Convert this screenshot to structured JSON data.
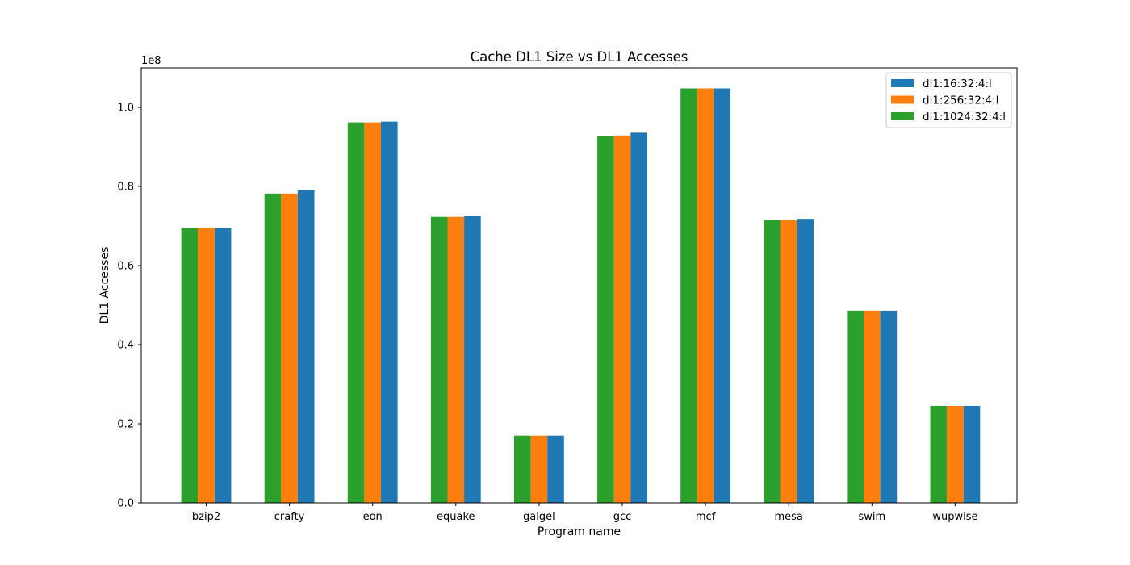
{
  "chart_data": {
    "type": "bar",
    "title": "Cache DL1 Size vs DL1 Accesses",
    "xlabel": "Program name",
    "ylabel": "DL1 Accesses",
    "y_scale_label": "1e8",
    "ylim": [
      0,
      1.1
    ],
    "yticks": [
      "0.0",
      "0.2",
      "0.4",
      "0.6",
      "0.8",
      "1.0"
    ],
    "grid": false,
    "legend_position": "top-right",
    "categories": [
      "bzip2",
      "crafty",
      "eon",
      "equake",
      "galgel",
      "gcc",
      "mcf",
      "mesa",
      "swim",
      "wupwise"
    ],
    "series": [
      {
        "name": "dl1:16:32:4:l",
        "color": "#1f77b4",
        "values": [
          0.694,
          0.79,
          0.964,
          0.725,
          0.17,
          0.936,
          1.048,
          0.718,
          0.486,
          0.245
        ]
      },
      {
        "name": "dl1:256:32:4:l",
        "color": "#ff7f0e",
        "values": [
          0.694,
          0.782,
          0.962,
          0.723,
          0.17,
          0.929,
          1.048,
          0.716,
          0.486,
          0.245
        ]
      },
      {
        "name": "dl1:1024:32:4:l",
        "color": "#2ca02c",
        "values": [
          0.694,
          0.782,
          0.962,
          0.723,
          0.17,
          0.927,
          1.048,
          0.716,
          0.486,
          0.245
        ]
      }
    ],
    "draw_order_left_to_right": [
      "dl1:1024:32:4:l",
      "dl1:256:32:4:l",
      "dl1:16:32:4:l"
    ]
  }
}
